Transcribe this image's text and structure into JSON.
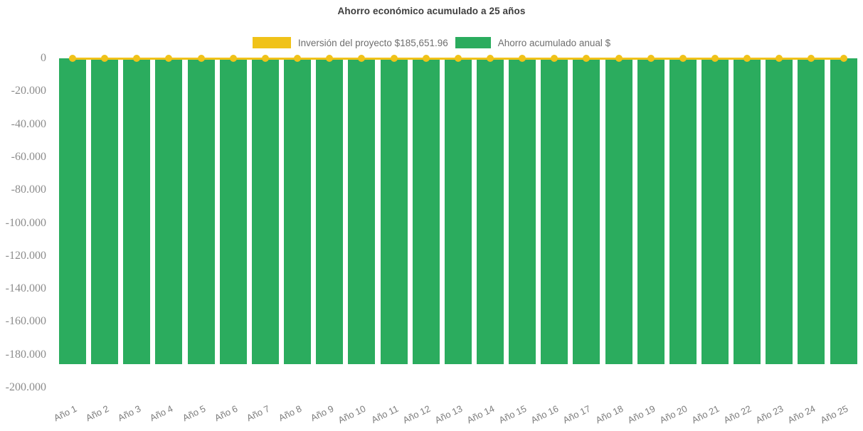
{
  "chart_data": {
    "type": "bar",
    "combo": "bar+line",
    "title": "Ahorro económico acumulado a 25 años",
    "categories": [
      "Año 1",
      "Año 2",
      "Año 3",
      "Año 4",
      "Año 5",
      "Año 6",
      "Año 7",
      "Año 8",
      "Año 9",
      "Año 10",
      "Año 11",
      "Año 12",
      "Año 13",
      "Año 14",
      "Año 15",
      "Año 16",
      "Año 17",
      "Año 18",
      "Año 19",
      "Año 20",
      "Año 21",
      "Año 22",
      "Año 23",
      "Año 24",
      "Año 25"
    ],
    "series": [
      {
        "name": "Inversión del proyecto $185,651.96",
        "type": "line",
        "marker": "circle",
        "color": "#f0c219",
        "values": [
          0,
          0,
          0,
          0,
          0,
          0,
          0,
          0,
          0,
          0,
          0,
          0,
          0,
          0,
          0,
          0,
          0,
          0,
          0,
          0,
          0,
          0,
          0,
          0,
          0
        ]
      },
      {
        "name": "Ahorro acumulado anual $",
        "type": "bar",
        "color": "#2bac5e",
        "values": [
          -185651.96,
          -185651.96,
          -185651.96,
          -185651.96,
          -185651.96,
          -185651.96,
          -185651.96,
          -185651.96,
          -185651.96,
          -185651.96,
          -185651.96,
          -185651.96,
          -185651.96,
          -185651.96,
          -185651.96,
          -185651.96,
          -185651.96,
          -185651.96,
          -185651.96,
          -185651.96,
          -185651.96,
          -185651.96,
          -185651.96,
          -185651.96,
          -185651.96
        ]
      }
    ],
    "y_axis": {
      "min": -200000,
      "max": 0,
      "tick_interval": 20000,
      "tick_labels": [
        "0",
        "-20.000",
        "-40.000",
        "-60.000",
        "-80.000",
        "-100.000",
        "-120.000",
        "-140.000",
        "-160.000",
        "-180.000",
        "-200.000"
      ],
      "grid": false
    },
    "x_axis": {
      "label_rotation_deg": -26
    },
    "legend_position": "top"
  },
  "colors": {
    "bar_green": "#2bac5e",
    "line_yellow": "#f0c219",
    "title_text": "#3d3d3d",
    "axis_label_text": "#8c8c8c",
    "legend_text": "#6e6e6e",
    "background": "#ffffff"
  }
}
